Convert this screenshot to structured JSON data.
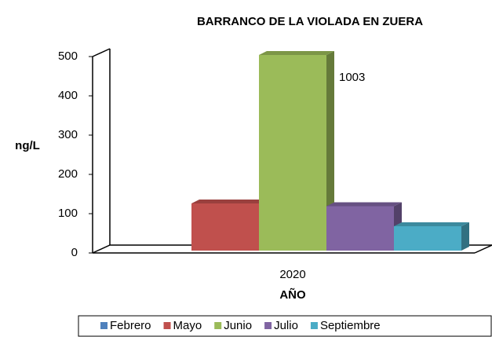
{
  "chart_data": {
    "type": "bar3d",
    "title": "BARRANCO DE LA VIOLADA EN ZUERA",
    "categories": [
      "2020"
    ],
    "series": [
      {
        "name": "Febrero",
        "color": "#4f81bd",
        "values": [
          0
        ]
      },
      {
        "name": "Mayo",
        "color": "#c0504d",
        "values": [
          120
        ]
      },
      {
        "name": "Junio",
        "color": "#9bbb59",
        "values": [
          1003
        ]
      },
      {
        "name": "Julio",
        "color": "#8064a2",
        "values": [
          113
        ]
      },
      {
        "name": "Septiembre",
        "color": "#4bacc6",
        "values": [
          62
        ]
      }
    ],
    "ylabel": "ng/L",
    "xlabel": "AÑO",
    "ylim": [
      0,
      500
    ],
    "yticks": [
      0,
      100,
      200,
      300,
      400,
      500
    ],
    "legend": "bottom"
  }
}
